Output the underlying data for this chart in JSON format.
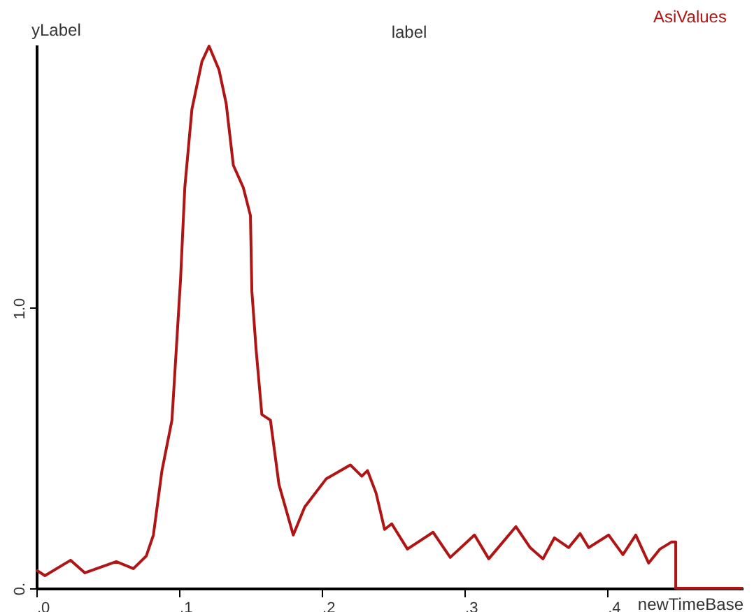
{
  "chart_data": {
    "type": "line",
    "title": "label",
    "xlabel": "newTimeBase",
    "ylabel": "yLabel",
    "x": [
      0,
      0.006,
      0.024,
      0.034,
      0.056,
      0.068,
      0.077,
      0.082,
      0.088,
      0.095,
      0.101,
      0.104,
      0.109,
      0.116,
      0.121,
      0.128,
      0.133,
      0.138,
      0.145,
      0.15,
      0.151,
      0.154,
      0.158,
      0.164,
      0.17,
      0.18,
      0.188,
      0.203,
      0.22,
      0.228,
      0.232,
      0.238,
      0.244,
      0.249,
      0.26,
      0.278,
      0.29,
      0.307,
      0.317,
      0.336,
      0.346,
      0.355,
      0.363,
      0.373,
      0.381,
      0.387,
      0.401,
      0.411,
      0.42,
      0.429,
      0.437,
      0.445,
      0.448,
      0.448,
      0.495
    ],
    "series": [
      {
        "name": "AsiValues",
        "color": "#b01515",
        "values": [
          0.065,
          0.045,
          0.1,
          0.055,
          0.095,
          0.07,
          0.115,
          0.19,
          0.42,
          0.6,
          1.1,
          1.43,
          1.71,
          1.88,
          1.935,
          1.85,
          1.73,
          1.51,
          1.43,
          1.33,
          1.06,
          0.85,
          0.62,
          0.6,
          0.37,
          0.19,
          0.29,
          0.39,
          0.44,
          0.4,
          0.42,
          0.34,
          0.21,
          0.23,
          0.14,
          0.2,
          0.11,
          0.19,
          0.105,
          0.22,
          0.145,
          0.105,
          0.18,
          0.145,
          0.195,
          0.145,
          0.19,
          0.12,
          0.19,
          0.09,
          0.14,
          0.165,
          0.165,
          0,
          0
        ]
      }
    ],
    "xlim": [
      0,
      0.495
    ],
    "ylim": [
      0,
      1.94
    ],
    "xticks": [
      {
        "value": 0,
        "label": ".0"
      },
      {
        "value": 0.1,
        "label": ".1"
      },
      {
        "value": 0.2,
        "label": ".2"
      },
      {
        "value": 0.3,
        "label": ".3"
      },
      {
        "value": 0.4,
        "label": ".4"
      }
    ],
    "yticks": [
      {
        "value": 0,
        "label": "0."
      },
      {
        "value": 1,
        "label": "1.0"
      }
    ],
    "grid": false,
    "legend": "top right",
    "marker": "none",
    "line_style": "solid"
  }
}
